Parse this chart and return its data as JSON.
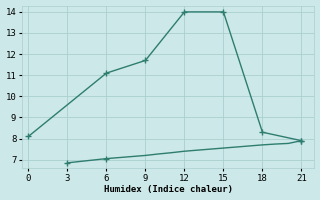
{
  "line1_x": [
    0,
    6,
    9,
    12,
    15,
    18,
    21
  ],
  "line1_y": [
    8.1,
    11.1,
    11.7,
    14.0,
    14.0,
    8.3,
    7.9
  ],
  "line1_marker_indices": [
    0,
    1,
    2,
    3,
    4,
    5,
    6
  ],
  "line2_x": [
    3,
    6,
    7,
    8,
    9,
    10,
    11,
    12,
    13,
    14,
    15,
    16,
    17,
    18,
    19,
    20,
    21
  ],
  "line2_y": [
    6.85,
    7.05,
    7.1,
    7.15,
    7.2,
    7.27,
    7.33,
    7.4,
    7.45,
    7.5,
    7.55,
    7.6,
    7.65,
    7.7,
    7.74,
    7.77,
    7.9
  ],
  "line2_marker_indices": [
    0,
    1,
    16
  ],
  "line_color": "#2e7d6e",
  "bg_color": "#cce8e8",
  "grid_color": "#aacfcf",
  "xlabel": "Humidex (Indice chaleur)",
  "xlim": [
    -0.5,
    22
  ],
  "ylim": [
    6.6,
    14.3
  ],
  "xticks": [
    0,
    3,
    6,
    9,
    12,
    15,
    18,
    21
  ],
  "yticks": [
    7,
    8,
    9,
    10,
    11,
    12,
    13,
    14
  ],
  "marker": "+",
  "markersize": 4,
  "linewidth": 1.0
}
